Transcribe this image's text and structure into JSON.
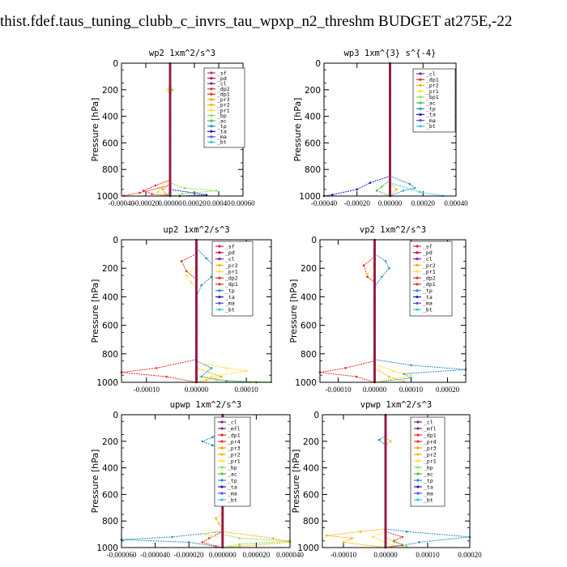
{
  "title": "thist.fdef.taus_tuning_clubb_c_invrs_tau_wpxp_n2_threshm  BUDGET at275E,-22",
  "colors": {
    "sf": "#d6246e",
    "pd": "#c0102f",
    "cl": "#7b2a91",
    "mfl": "#7b2a91",
    "dp2": "#e8312a",
    "dp1": "#e8312a",
    "pr4": "#e8312a",
    "pr3": "#f7a000",
    "pr2": "#ffb000",
    "pr1": "#ffe030",
    "bp": "#8be04e",
    "ac": "#39c939",
    "tp": "#2a8fc2",
    "ta": "#1d1db8",
    "ma": "#5555dd",
    "bt": "#22cce0",
    "thick": "#b0131a"
  },
  "chart_data": [
    {
      "type": "line",
      "title": "wp2  1xm^2/s^3",
      "ylabel": "Pressure [hPa]",
      "ylim": [
        1000,
        0
      ],
      "yticks": [
        "0",
        "200",
        "400",
        "600",
        "800",
        "1000"
      ],
      "xlim": [
        -0.0004,
        0.0006
      ],
      "xticks": [
        "-0.00040",
        "-0.00020",
        "0.00000",
        "0.00020",
        "0.00040",
        "0.00060"
      ],
      "legend": [
        "_sf",
        "_pd",
        "_cl",
        "_dp2",
        "_dp1",
        "_pr3",
        "_pr2",
        "_pr1",
        "_bp",
        "_ac",
        "_tp",
        "_ta",
        "_ma",
        "_bt"
      ],
      "series": [
        {
          "name": "_bp",
          "points": [
            [
              0,
              150
            ],
            [
              2e-05,
              200
            ],
            [
              0,
              250
            ],
            [
              0,
              900
            ],
            [
              0.00012,
              940
            ],
            [
              0.00038,
              960
            ],
            [
              0.0001,
              985
            ],
            [
              0,
              1000
            ]
          ]
        },
        {
          "name": "_pr1",
          "points": [
            [
              0,
              150
            ],
            [
              -2e-05,
              200
            ],
            [
              0,
              250
            ],
            [
              0,
              880
            ],
            [
              -8e-05,
              940
            ],
            [
              -0.0001,
              970
            ],
            [
              0,
              1000
            ]
          ]
        },
        {
          "name": "_pr3",
          "points": [
            [
              0,
              900
            ],
            [
              -6e-05,
              950
            ],
            [
              -4e-05,
              985
            ],
            [
              0,
              1000
            ]
          ]
        },
        {
          "name": "_dp2",
          "points": [
            [
              0,
              880
            ],
            [
              -0.00012,
              920
            ],
            [
              -0.00022,
              960
            ],
            [
              -0.00015,
              985
            ],
            [
              0,
              1000
            ]
          ]
        },
        {
          "name": "_dp1",
          "points": [
            [
              0,
              920
            ],
            [
              -0.00025,
              975
            ],
            [
              -0.00038,
              998
            ]
          ]
        },
        {
          "name": "_ta",
          "points": [
            [
              0,
              950
            ],
            [
              0.0003,
              992
            ],
            [
              8e-05,
              1000
            ]
          ]
        },
        {
          "name": "_bt",
          "points": [
            [
              0,
              950
            ],
            [
              -2e-05,
              990
            ],
            [
              0,
              1000
            ]
          ]
        }
      ]
    },
    {
      "type": "line",
      "title": "wp3  1xm^{3} s^{-4}",
      "ylabel": "Pressure [hPa]",
      "ylim": [
        1000,
        0
      ],
      "yticks": [
        "0",
        "200",
        "400",
        "600",
        "800",
        "1000"
      ],
      "xlim": [
        -0.0004,
        0.0004
      ],
      "xticks": [
        "-0.00040",
        "-0.00020",
        "0.00000",
        "0.00020",
        "0.00040"
      ],
      "legend": [
        "_cl",
        "_dp1",
        "_pr2",
        "_pr1",
        "_bp1",
        "_ac",
        "_tp",
        "_ta",
        "_ma",
        "_bt"
      ],
      "series": [
        {
          "name": "_ta",
          "points": [
            [
              0,
              850
            ],
            [
              -0.00012,
              900
            ],
            [
              -0.0002,
              950
            ],
            [
              -0.00035,
              990
            ],
            [
              -0.0004,
              1000
            ]
          ]
        },
        {
          "name": "_tp",
          "points": [
            [
              0,
              850
            ],
            [
              0.00012,
              910
            ],
            [
              0.00015,
              940
            ],
            [
              8e-05,
              960
            ],
            [
              0,
              1000
            ]
          ]
        },
        {
          "name": "_bt",
          "points": [
            [
              0,
              900
            ],
            [
              0.00018,
              970
            ],
            [
              0.00032,
              998
            ]
          ]
        },
        {
          "name": "_ac",
          "points": [
            [
              0,
              880
            ],
            [
              -5e-05,
              930
            ],
            [
              -8e-05,
              960
            ],
            [
              0,
              1000
            ]
          ]
        },
        {
          "name": "_pr2",
          "points": [
            [
              0,
              900
            ],
            [
              4e-05,
              950
            ],
            [
              0,
              1000
            ]
          ]
        }
      ]
    },
    {
      "type": "line",
      "title": "up2  1xm^2/s^3",
      "ylabel": "Pressure [hPa]",
      "ylim": [
        1000,
        0
      ],
      "yticks": [
        "0",
        "200",
        "400",
        "600",
        "800",
        "1000"
      ],
      "xlim": [
        -0.00015,
        0.00015
      ],
      "xticks": [
        "-0.00010",
        "0.00000",
        "0.00010"
      ],
      "legend": [
        "_sf",
        "_pd",
        "_cl",
        "_pr2",
        "_pr1",
        "_dp2",
        "_dp1",
        "_tp",
        "_ta",
        "_ma",
        "_bt"
      ],
      "series": [
        {
          "name": "_tp",
          "points": [
            [
              0,
              60
            ],
            [
              2e-05,
              130
            ],
            [
              4e-05,
              200
            ],
            [
              3e-05,
              260
            ],
            [
              1e-05,
              320
            ],
            [
              0,
              400
            ],
            [
              0,
              850
            ],
            [
              3e-05,
              900
            ],
            [
              1e-05,
              960
            ],
            [
              6e-05,
              990
            ],
            [
              0.00012,
              1000
            ]
          ]
        },
        {
          "name": "_dp1",
          "points": [
            [
              0,
              100
            ],
            [
              -3e-05,
              150
            ],
            [
              -2e-05,
              220
            ],
            [
              0,
              280
            ],
            [
              0,
              840
            ],
            [
              -8e-05,
              900
            ],
            [
              -0.00015,
              930
            ],
            [
              -6e-05,
              960
            ],
            [
              0,
              1000
            ]
          ]
        },
        {
          "name": "_pr1",
          "points": [
            [
              0,
              180
            ],
            [
              -2e-05,
              250
            ],
            [
              -1e-05,
              300
            ],
            [
              0,
              340
            ],
            [
              0,
              860
            ],
            [
              6e-05,
              900
            ],
            [
              0.0001,
              920
            ],
            [
              3e-05,
              960
            ],
            [
              0,
              1000
            ]
          ]
        },
        {
          "name": "_pr2",
          "points": [
            [
              0,
              900
            ],
            [
              5e-05,
              960
            ],
            [
              2e-05,
              985
            ],
            [
              0,
              1000
            ]
          ]
        },
        {
          "name": "_bp",
          "points": [
            [
              0,
              950
            ],
            [
              4e-05,
              985
            ],
            [
              0.00015,
              998
            ]
          ]
        }
      ]
    },
    {
      "type": "line",
      "title": "vp2  1xm^2/s^3",
      "ylabel": "Pressure [hPa]",
      "ylim": [
        1000,
        0
      ],
      "yticks": [
        "0",
        "200",
        "400",
        "600",
        "800",
        "1000"
      ],
      "xlim": [
        -0.00015,
        0.00025
      ],
      "xticks": [
        "-0.00010",
        "0.00000",
        "0.00010",
        "0.00020"
      ],
      "legend": [
        "_sf",
        "_pd",
        "_cl",
        "_pr2",
        "_pr1",
        "_dp2",
        "_dp1",
        "_tp",
        "_ta",
        "_ma",
        "_bt"
      ],
      "series": [
        {
          "name": "_tp",
          "points": [
            [
              0,
              100
            ],
            [
              3e-05,
              150
            ],
            [
              4e-05,
              200
            ],
            [
              2e-05,
              260
            ],
            [
              0,
              330
            ],
            [
              0,
              840
            ],
            [
              0.0001,
              880
            ],
            [
              0.00025,
              910
            ],
            [
              8e-05,
              940
            ],
            [
              0.0001,
              970
            ],
            [
              0,
              1000
            ]
          ]
        },
        {
          "name": "_dp1",
          "points": [
            [
              0,
              120
            ],
            [
              -3e-05,
              180
            ],
            [
              -2e-05,
              260
            ],
            [
              0,
              300
            ],
            [
              0,
              850
            ],
            [
              -8e-05,
              900
            ],
            [
              -0.00015,
              930
            ],
            [
              -5e-05,
              960
            ],
            [
              0,
              1000
            ]
          ]
        },
        {
          "name": "_pr1",
          "points": [
            [
              0,
              170
            ],
            [
              -2e-05,
              240
            ],
            [
              0,
              300
            ],
            [
              0,
              870
            ],
            [
              5e-05,
              920
            ],
            [
              0.0001,
              950
            ],
            [
              4e-05,
              980
            ],
            [
              0,
              1000
            ]
          ]
        },
        {
          "name": "_pr2",
          "points": [
            [
              0,
              900
            ],
            [
              4e-05,
              960
            ],
            [
              8e-05,
              995
            ]
          ]
        }
      ]
    },
    {
      "type": "line",
      "title": "upwp  1xm^2/s^3",
      "ylabel": "Pressure [hPa]",
      "ylim": [
        1000,
        0
      ],
      "yticks": [
        "0",
        "200",
        "400",
        "600",
        "800",
        "1000"
      ],
      "xlim": [
        -6e-05,
        4e-05
      ],
      "xticks": [
        "-0.000060",
        "-0.000040",
        "-0.000020",
        "0.000000",
        "0.000020",
        "0.000040"
      ],
      "legend": [
        "_cl",
        "_mfl",
        "_dp1",
        "_pr4",
        "_pr3",
        "_pr2",
        "_pr1",
        "_bp",
        "_ac",
        "_tp",
        "_ta",
        "_ma",
        "_bt"
      ],
      "series": [
        {
          "name": "_tp",
          "points": [
            [
              0,
              120
            ],
            [
              -6e-06,
              170
            ],
            [
              -1.2e-05,
              200
            ],
            [
              -6e-06,
              230
            ],
            [
              0,
              260
            ],
            [
              0,
              880
            ],
            [
              -3e-05,
              920
            ],
            [
              -6e-05,
              940
            ],
            [
              -2e-05,
              960
            ],
            [
              0,
              1000
            ]
          ]
        },
        {
          "name": "_pr2",
          "points": [
            [
              0,
              150
            ],
            [
              5e-06,
              200
            ],
            [
              3e-06,
              260
            ],
            [
              0,
              300
            ],
            [
              0,
              740
            ],
            [
              -4e-06,
              780
            ],
            [
              -2e-06,
              820
            ],
            [
              0,
              850
            ],
            [
              0,
              880
            ],
            [
              3e-05,
              930
            ],
            [
              4e-05,
              960
            ],
            [
              1e-05,
              990
            ],
            [
              0,
              1000
            ]
          ]
        },
        {
          "name": "_dp1",
          "points": [
            [
              0,
              880
            ],
            [
              -8e-06,
              930
            ],
            [
              -1.2e-05,
              960
            ],
            [
              -4e-06,
              990
            ],
            [
              0,
              1000
            ]
          ]
        },
        {
          "name": "_bp",
          "points": [
            [
              0,
              900
            ],
            [
              1e-05,
              930
            ],
            [
              4e-05,
              950
            ],
            [
              1e-05,
              975
            ],
            [
              0,
              1000
            ]
          ]
        },
        {
          "name": "_pr1",
          "points": [
            [
              0,
              860
            ],
            [
              -1e-05,
              900
            ],
            [
              0,
              930
            ],
            [
              0,
              1000
            ]
          ]
        }
      ]
    },
    {
      "type": "line",
      "title": "vpwp  1xm^2/s^3",
      "ylabel": "Pressure [hPa]",
      "ylim": [
        1000,
        0
      ],
      "yticks": [
        "0",
        "200",
        "400",
        "600",
        "800",
        "1000"
      ],
      "xlim": [
        -0.00015,
        0.0002
      ],
      "xticks": [
        "-0.00010",
        "0.00000",
        "0.00010",
        "0.00020"
      ],
      "legend": [
        "_cl",
        "_mfl",
        "_dp1",
        "_pr4",
        "_pr3",
        "_pr2",
        "_pr1",
        "_bp",
        "_ac",
        "_tp",
        "_ta",
        "_ma",
        "_bt"
      ],
      "series": [
        {
          "name": "_tp",
          "points": [
            [
              0,
              160
            ],
            [
              -1.5e-05,
              190
            ],
            [
              0,
              230
            ],
            [
              0,
              860
            ],
            [
              5e-05,
              880
            ],
            [
              0.0002,
              920
            ],
            [
              8e-05,
              960
            ],
            [
              4e-05,
              985
            ],
            [
              0,
              1000
            ]
          ]
        },
        {
          "name": "_pr2",
          "points": [
            [
              0,
              170
            ],
            [
              1.2e-05,
              200
            ],
            [
              0,
              230
            ],
            [
              0,
              860
            ],
            [
              -6e-05,
              880
            ],
            [
              -0.00014,
              910
            ],
            [
              -8e-05,
              930
            ],
            [
              -0.0001,
              960
            ],
            [
              0,
              1000
            ]
          ]
        },
        {
          "name": "_pr1",
          "points": [
            [
              0,
              880
            ],
            [
              -3e-05,
              920
            ],
            [
              0,
              960
            ],
            [
              2e-05,
              985
            ],
            [
              0,
              1000
            ]
          ]
        },
        {
          "name": "_dp1",
          "points": [
            [
              0,
              880
            ],
            [
              4e-05,
              920
            ],
            [
              2e-05,
              950
            ],
            [
              4e-05,
              980
            ],
            [
              0,
              1000
            ]
          ]
        },
        {
          "name": "_bp",
          "points": [
            [
              0,
              920
            ],
            [
              2e-05,
              960
            ],
            [
              5e-05,
              990
            ]
          ]
        }
      ]
    }
  ]
}
